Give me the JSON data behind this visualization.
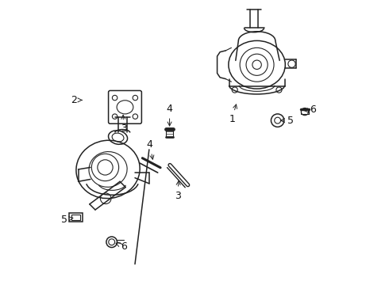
{
  "title": "",
  "background_color": "#ffffff",
  "fig_width": 4.9,
  "fig_height": 3.6,
  "dpi": 100,
  "label_fontsize": 9,
  "line_color": "#222222",
  "label_color": "#111111"
}
